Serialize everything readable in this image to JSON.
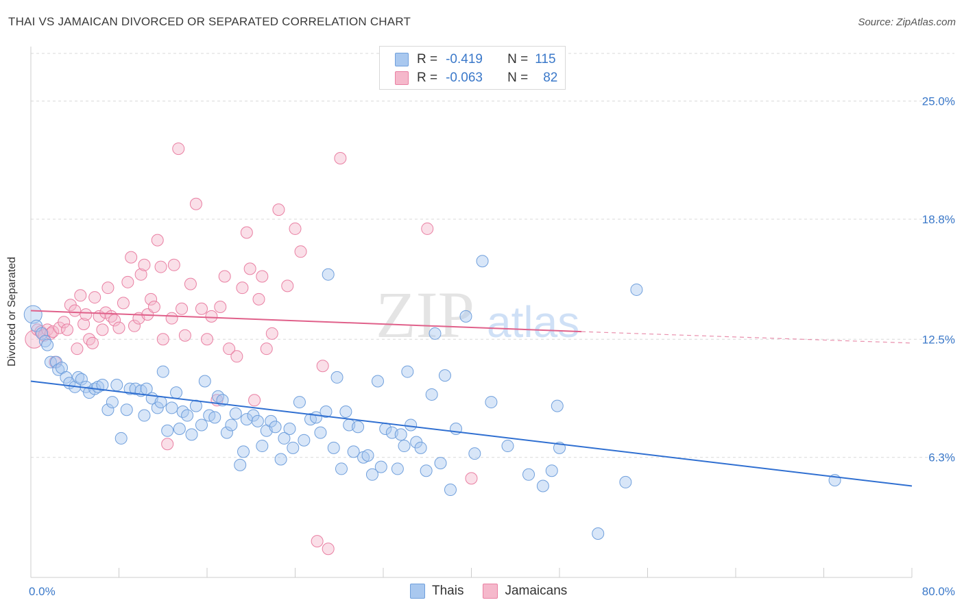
{
  "header": {
    "title": "THAI VS JAMAICAN DIVORCED OR SEPARATED CORRELATION CHART",
    "source": "Source: ZipAtlas.com"
  },
  "legend_top": {
    "row1": {
      "r_label": "R =",
      "r_value": "-0.419",
      "n_label": "N =",
      "n_value": "115"
    },
    "row2": {
      "r_label": "R =",
      "r_value": "-0.063",
      "n_label": "N =",
      "n_value": "82"
    }
  },
  "legend_bottom": {
    "thais": "Thais",
    "jamaicans": "Jamaicans"
  },
  "watermark": {
    "zip": "ZIP",
    "atlas": "atlas"
  },
  "colors": {
    "thais_fill": "#a9c8ef",
    "thais_stroke": "#6f9fdc",
    "thais_line": "#2f6fd1",
    "jam_fill": "#f5b8cb",
    "jam_stroke": "#e97fa2",
    "jam_line": "#e0608a",
    "tick_label": "#3a78c9",
    "grid": "#d9d9d9"
  },
  "chart_data": {
    "type": "scatter",
    "title": "THAI VS JAMAICAN DIVORCED OR SEPARATED CORRELATION CHART",
    "xlabel": "",
    "ylabel": "Divorced or Separated",
    "xlim": [
      0,
      80
    ],
    "ylim": [
      0,
      27.5
    ],
    "x_tick_labels": [
      "0.0%",
      "80.0%"
    ],
    "y_ticks": [
      6.3,
      12.5,
      18.8,
      25.0
    ],
    "y_tick_labels": [
      "6.3%",
      "12.5%",
      "18.8%",
      "25.0%"
    ],
    "grid": "horizontal dashed",
    "legend_position": "bottom",
    "series": [
      {
        "name": "Thais",
        "trendline": {
          "x": [
            0,
            80
          ],
          "y": [
            10.3,
            4.8
          ]
        },
        "points": [
          [
            0.2,
            13.8
          ],
          [
            0.5,
            13.2
          ],
          [
            1.0,
            12.8
          ],
          [
            1.3,
            12.4
          ],
          [
            1.5,
            12.2
          ],
          [
            1.8,
            11.3
          ],
          [
            2.3,
            11.3
          ],
          [
            2.5,
            10.9
          ],
          [
            2.8,
            11.0
          ],
          [
            3.2,
            10.5
          ],
          [
            3.5,
            10.2
          ],
          [
            4.0,
            10.0
          ],
          [
            4.3,
            10.5
          ],
          [
            4.6,
            10.4
          ],
          [
            5.0,
            10.0
          ],
          [
            5.3,
            9.7
          ],
          [
            5.8,
            9.9
          ],
          [
            6.1,
            10.0
          ],
          [
            6.5,
            10.1
          ],
          [
            7.0,
            8.8
          ],
          [
            7.4,
            9.2
          ],
          [
            7.8,
            10.1
          ],
          [
            8.2,
            7.3
          ],
          [
            8.7,
            8.8
          ],
          [
            9.0,
            9.9
          ],
          [
            9.5,
            9.9
          ],
          [
            10.0,
            9.8
          ],
          [
            10.3,
            8.5
          ],
          [
            10.5,
            9.9
          ],
          [
            11.0,
            9.4
          ],
          [
            11.5,
            8.9
          ],
          [
            11.8,
            9.2
          ],
          [
            12.0,
            10.8
          ],
          [
            12.4,
            7.7
          ],
          [
            12.8,
            8.9
          ],
          [
            13.2,
            9.7
          ],
          [
            13.5,
            7.8
          ],
          [
            13.8,
            8.7
          ],
          [
            14.2,
            8.5
          ],
          [
            14.6,
            7.5
          ],
          [
            15.0,
            9.0
          ],
          [
            15.5,
            8.0
          ],
          [
            15.8,
            10.3
          ],
          [
            16.2,
            8.5
          ],
          [
            16.7,
            8.4
          ],
          [
            17.0,
            9.5
          ],
          [
            17.4,
            9.3
          ],
          [
            17.8,
            7.6
          ],
          [
            18.2,
            8.0
          ],
          [
            18.6,
            8.6
          ],
          [
            19.0,
            5.9
          ],
          [
            19.3,
            6.6
          ],
          [
            19.6,
            8.3
          ],
          [
            20.2,
            8.5
          ],
          [
            20.6,
            8.2
          ],
          [
            21.0,
            6.9
          ],
          [
            21.4,
            7.7
          ],
          [
            21.8,
            8.2
          ],
          [
            22.2,
            7.9
          ],
          [
            22.7,
            6.2
          ],
          [
            23.0,
            7.3
          ],
          [
            23.5,
            7.8
          ],
          [
            23.8,
            6.8
          ],
          [
            24.4,
            9.2
          ],
          [
            24.8,
            7.2
          ],
          [
            25.4,
            8.3
          ],
          [
            25.9,
            8.4
          ],
          [
            26.3,
            7.6
          ],
          [
            26.8,
            8.7
          ],
          [
            27.0,
            15.9
          ],
          [
            27.5,
            6.8
          ],
          [
            27.8,
            10.5
          ],
          [
            28.2,
            5.7
          ],
          [
            28.6,
            8.7
          ],
          [
            28.9,
            8.0
          ],
          [
            29.3,
            6.6
          ],
          [
            29.7,
            7.9
          ],
          [
            30.2,
            6.3
          ],
          [
            30.6,
            6.4
          ],
          [
            31.0,
            5.4
          ],
          [
            31.5,
            10.3
          ],
          [
            31.8,
            5.8
          ],
          [
            32.2,
            7.8
          ],
          [
            32.8,
            7.6
          ],
          [
            33.3,
            5.7
          ],
          [
            33.6,
            7.5
          ],
          [
            33.9,
            6.9
          ],
          [
            34.2,
            10.8
          ],
          [
            34.5,
            8.0
          ],
          [
            35.0,
            7.1
          ],
          [
            35.4,
            6.8
          ],
          [
            35.9,
            5.6
          ],
          [
            36.4,
            9.6
          ],
          [
            36.7,
            12.8
          ],
          [
            37.2,
            6.0
          ],
          [
            37.6,
            10.6
          ],
          [
            38.1,
            4.6
          ],
          [
            38.6,
            7.8
          ],
          [
            39.5,
            13.7
          ],
          [
            40.3,
            6.5
          ],
          [
            41.0,
            16.6
          ],
          [
            41.8,
            9.2
          ],
          [
            43.3,
            6.9
          ],
          [
            45.2,
            5.4
          ],
          [
            46.5,
            4.8
          ],
          [
            47.3,
            5.6
          ],
          [
            47.8,
            9.0
          ],
          [
            48.0,
            6.8
          ],
          [
            51.5,
            2.3
          ],
          [
            54.0,
            5.0
          ],
          [
            55.0,
            15.1
          ],
          [
            73.0,
            5.1
          ]
        ]
      },
      {
        "name": "Jamaicans",
        "trendline": {
          "x": [
            0,
            50
          ],
          "y": [
            14.0,
            12.9
          ],
          "dashed_to": {
            "x": 80,
            "y": 12.3
          }
        },
        "points": [
          [
            0.3,
            12.5
          ],
          [
            0.6,
            13.0
          ],
          [
            0.9,
            12.9
          ],
          [
            1.2,
            12.7
          ],
          [
            1.5,
            13.0
          ],
          [
            1.8,
            12.8
          ],
          [
            2.0,
            12.9
          ],
          [
            2.2,
            11.3
          ],
          [
            2.6,
            13.1
          ],
          [
            3.0,
            13.4
          ],
          [
            3.3,
            13.0
          ],
          [
            3.6,
            14.3
          ],
          [
            4.0,
            14.0
          ],
          [
            4.2,
            12.0
          ],
          [
            4.5,
            14.8
          ],
          [
            4.8,
            13.3
          ],
          [
            5.0,
            13.8
          ],
          [
            5.3,
            12.5
          ],
          [
            5.6,
            12.3
          ],
          [
            5.8,
            14.7
          ],
          [
            6.2,
            13.7
          ],
          [
            6.5,
            13.0
          ],
          [
            6.8,
            13.9
          ],
          [
            7.0,
            15.2
          ],
          [
            7.3,
            13.7
          ],
          [
            7.6,
            13.5
          ],
          [
            8.0,
            13.1
          ],
          [
            8.4,
            14.4
          ],
          [
            8.8,
            15.5
          ],
          [
            9.1,
            16.8
          ],
          [
            9.4,
            13.2
          ],
          [
            9.8,
            13.6
          ],
          [
            10.0,
            15.9
          ],
          [
            10.3,
            16.4
          ],
          [
            10.6,
            13.8
          ],
          [
            10.9,
            14.6
          ],
          [
            11.2,
            14.2
          ],
          [
            11.5,
            17.7
          ],
          [
            11.8,
            16.3
          ],
          [
            12.0,
            12.5
          ],
          [
            12.4,
            7.0
          ],
          [
            12.8,
            13.6
          ],
          [
            13.0,
            16.4
          ],
          [
            13.4,
            22.5
          ],
          [
            13.7,
            14.1
          ],
          [
            14.0,
            12.7
          ],
          [
            14.5,
            15.4
          ],
          [
            15.0,
            19.6
          ],
          [
            15.5,
            14.1
          ],
          [
            16.0,
            12.5
          ],
          [
            16.4,
            13.7
          ],
          [
            16.9,
            9.3
          ],
          [
            17.2,
            14.2
          ],
          [
            17.6,
            15.8
          ],
          [
            18.0,
            12.0
          ],
          [
            18.7,
            11.6
          ],
          [
            19.2,
            15.2
          ],
          [
            19.6,
            18.1
          ],
          [
            19.9,
            16.2
          ],
          [
            20.3,
            9.3
          ],
          [
            20.7,
            14.6
          ],
          [
            21.0,
            15.8
          ],
          [
            21.4,
            12.0
          ],
          [
            21.9,
            12.8
          ],
          [
            22.5,
            19.3
          ],
          [
            23.3,
            15.3
          ],
          [
            24.0,
            18.3
          ],
          [
            24.5,
            17.1
          ],
          [
            26.0,
            1.9
          ],
          [
            26.5,
            11.1
          ],
          [
            27.0,
            1.5
          ],
          [
            28.1,
            22.0
          ],
          [
            36.0,
            18.3
          ],
          [
            40.0,
            5.2
          ]
        ]
      }
    ]
  }
}
